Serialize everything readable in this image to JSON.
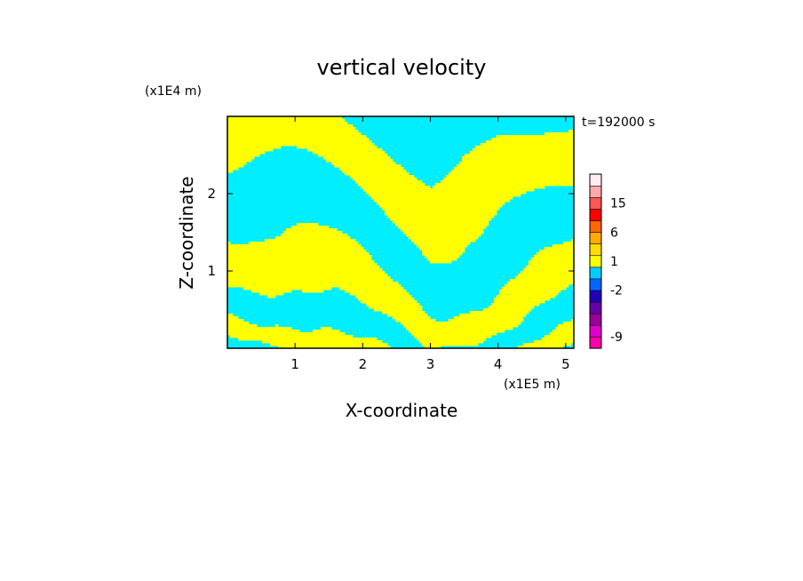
{
  "chart_data": {
    "type": "heatmap",
    "title": "vertical velocity",
    "xlabel": "X-coordinate",
    "ylabel": "Z-coordinate",
    "x_unit": "(x1E5 m)",
    "y_unit": "(x1E4 m)",
    "time_label": "t=192000 s",
    "xlim": [
      0,
      5.12
    ],
    "ylim": [
      0,
      3.0
    ],
    "x_ticks": [
      1,
      2,
      3,
      4,
      5
    ],
    "y_ticks": [
      1,
      2
    ],
    "field_colors": {
      "positive": "#ffff00",
      "negative": "#00eeff"
    },
    "colorbar": {
      "colors": [
        "#ff00aa",
        "#dd00cc",
        "#990099",
        "#6600aa",
        "#2200bb",
        "#0066ff",
        "#00ccff",
        "#ffff00",
        "#ffdd00",
        "#ffaa00",
        "#ff6600",
        "#ff0000",
        "#ff5555",
        "#ffaaaa",
        "#ffeeee"
      ],
      "tick_labels": [
        {
          "label": "-9",
          "index": 1
        },
        {
          "label": "-2",
          "index": 5
        },
        {
          "label": "1",
          "index": 7.5
        },
        {
          "label": "6",
          "index": 10
        },
        {
          "label": "15",
          "index": 12.5
        }
      ]
    }
  }
}
